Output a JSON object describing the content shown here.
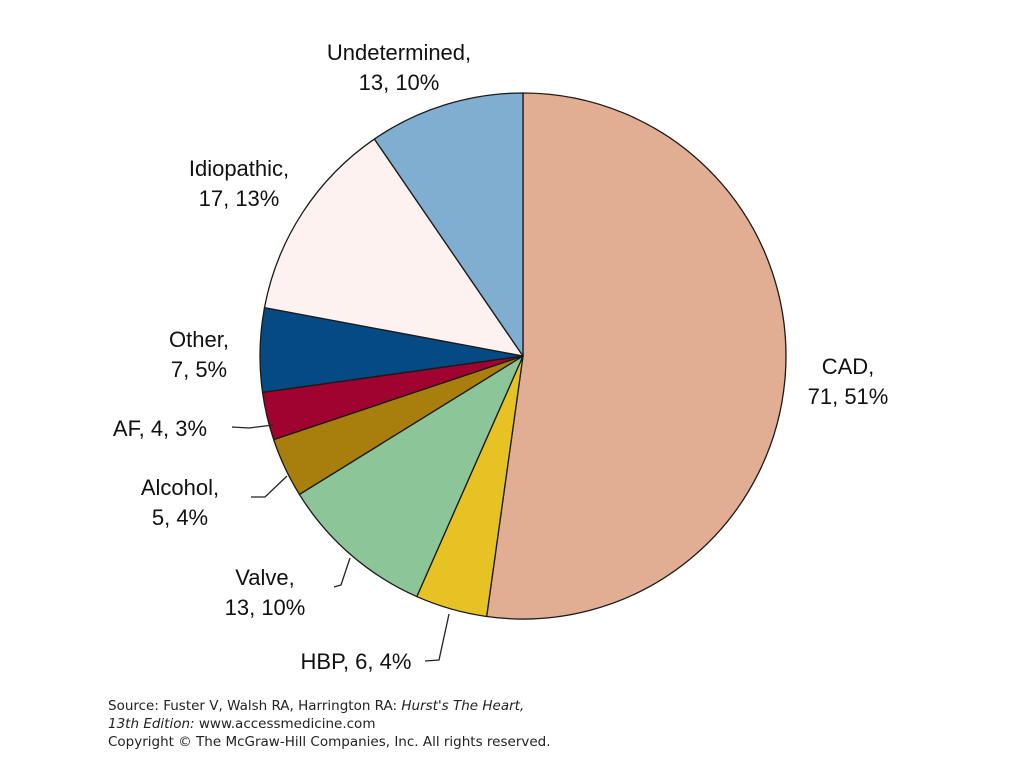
{
  "chart_data": {
    "type": "pie",
    "start_angle_deg": 0,
    "direction": "clockwise",
    "slices": [
      {
        "label": "CAD",
        "value": 71,
        "percent": "51%",
        "label_lines": [
          "CAD,",
          "71, 51%"
        ],
        "color": "#E2AE93"
      },
      {
        "label": "HBP",
        "value": 6,
        "percent": "4%",
        "label_lines": [
          "HBP, 6, 4%"
        ],
        "color": "#E6C224"
      },
      {
        "label": "Valve",
        "value": 13,
        "percent": "10%",
        "label_lines": [
          "Valve,",
          "13, 10%"
        ],
        "color": "#8CC597"
      },
      {
        "label": "Alcohol",
        "value": 5,
        "percent": "4%",
        "label_lines": [
          "Alcohol,",
          "5, 4%"
        ],
        "color": "#A87E0C"
      },
      {
        "label": "AF",
        "value": 4,
        "percent": "3%",
        "label_lines": [
          "AF, 4, 3%"
        ],
        "color": "#A0032F"
      },
      {
        "label": "Other",
        "value": 7,
        "percent": "5%",
        "label_lines": [
          "Other,",
          "7, 5%"
        ],
        "color": "#064A83"
      },
      {
        "label": "Idiopathic",
        "value": 17,
        "percent": "13%",
        "label_lines": [
          "Idiopathic,",
          "17, 13%"
        ],
        "color": "#FDF2EF"
      },
      {
        "label": "Undetermined",
        "value": 13,
        "percent": "10%",
        "label_lines": [
          "Undetermined,",
          "13, 10%"
        ],
        "color": "#7FAED1"
      }
    ]
  },
  "source": {
    "line1_prefix": "Source: Fuster V, Walsh RA, Harrington RA: ",
    "line1_italic": "Hurst's The Heart,",
    "line2_italic": "13th Edition:",
    "line2_rest": " www.accessmedicine.com",
    "copyright": "Copyright © The McGraw-Hill Companies, Inc. All rights reserved."
  }
}
